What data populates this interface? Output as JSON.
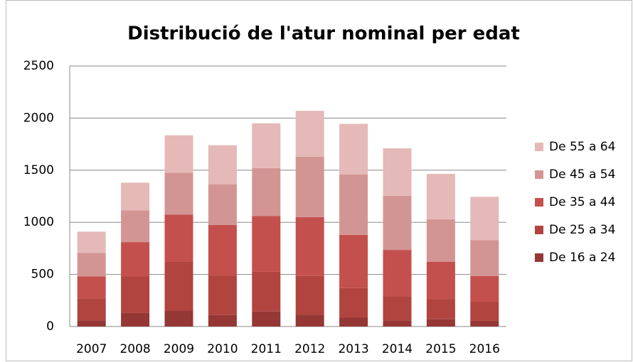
{
  "chart_data": {
    "type": "stacked_bar",
    "title": "Distribució de l'atur nominal per edat",
    "categories": [
      "2007",
      "2008",
      "2009",
      "2010",
      "2011",
      "2012",
      "2013",
      "2014",
      "2015",
      "2016"
    ],
    "series": [
      {
        "name": "De 16 a 24",
        "color": "#953735",
        "values": [
          60,
          130,
          150,
          110,
          145,
          115,
          85,
          60,
          70,
          55
        ]
      },
      {
        "name": "De 25 a 34",
        "color": "#b1443f",
        "values": [
          210,
          350,
          470,
          380,
          380,
          370,
          285,
          230,
          195,
          180
        ]
      },
      {
        "name": "De 35 a 44",
        "color": "#c4504d",
        "values": [
          210,
          330,
          455,
          485,
          535,
          565,
          510,
          445,
          355,
          250
        ]
      },
      {
        "name": "De 45 a 54",
        "color": "#d39593",
        "values": [
          225,
          305,
          400,
          390,
          460,
          580,
          580,
          520,
          410,
          345
        ]
      },
      {
        "name": "De 55 a 64",
        "color": "#e4b9b8",
        "values": [
          205,
          265,
          360,
          375,
          430,
          440,
          485,
          455,
          435,
          415
        ]
      }
    ],
    "ylim": [
      0,
      2500
    ],
    "yticks": [
      0,
      500,
      1000,
      1500,
      2000,
      2500
    ],
    "grid": true,
    "legend": "right"
  }
}
